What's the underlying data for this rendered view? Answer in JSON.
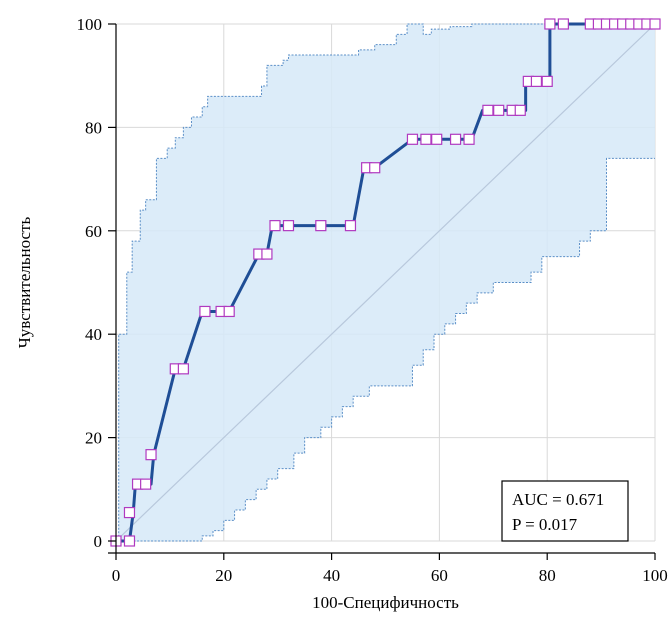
{
  "chart_data": {
    "type": "line",
    "title": "",
    "xlabel": "100-Специфичность",
    "ylabel": "Чувствительность",
    "xlim": [
      0,
      100
    ],
    "ylim": [
      0,
      100
    ],
    "x_ticks": [
      0,
      20,
      40,
      60,
      80,
      100
    ],
    "y_ticks": [
      0,
      20,
      40,
      60,
      80,
      100
    ],
    "grid": true,
    "colors": {
      "roc_line": "#1f4e96",
      "marker_stroke": "#b03ac0",
      "ci_fill": "#d6e9f8",
      "ci_border": "#5b8fc7",
      "diagonal": "#b8c8dc",
      "grid": "#d9d9d9"
    },
    "series": [
      {
        "type": "step-line",
        "x": [
          0,
          2.5,
          2.5,
          3.2,
          3.6,
          4.5,
          6.5,
          7,
          11,
          12.5,
          16,
          17,
          19.5,
          21,
          26.5,
          28,
          29,
          29.5,
          32,
          38,
          43,
          44,
          46,
          48,
          55,
          58,
          59,
          63,
          65,
          66,
          68,
          69,
          71,
          73,
          75,
          76,
          76,
          78,
          80,
          80.5,
          80.5,
          83,
          88,
          91,
          93,
          95,
          97,
          100
        ],
        "y": [
          0,
          0,
          0,
          5.5,
          11,
          11,
          11,
          16.7,
          33.3,
          33.3,
          44.4,
          44.4,
          44.4,
          44.4,
          55.5,
          55.5,
          61,
          61,
          61,
          61,
          61,
          61,
          72.2,
          72.2,
          77.7,
          77.7,
          77.7,
          77.7,
          77.7,
          77.7,
          83.3,
          83.3,
          83.3,
          83.3,
          83.3,
          83.3,
          88.9,
          88.9,
          88.9,
          88.9,
          100,
          100,
          100,
          100,
          100,
          100,
          100,
          100
        ]
      }
    ],
    "markers": {
      "x": [
        0,
        2.5,
        2.5,
        4,
        5.5,
        6.5,
        11,
        12.5,
        16.5,
        19.5,
        21,
        26.5,
        28,
        29.5,
        32,
        38,
        43.5,
        46.5,
        48,
        55,
        57.5,
        59.5,
        63,
        65.5,
        69,
        71,
        73.5,
        75,
        76.5,
        78,
        80,
        80.5,
        83,
        88,
        89.5,
        91,
        92.5,
        94,
        95.5,
        97,
        98.5,
        100
      ],
      "y": [
        0,
        0,
        5.5,
        11,
        11,
        16.7,
        33.3,
        33.3,
        44.4,
        44.4,
        44.4,
        55.5,
        55.5,
        61,
        61,
        61,
        61,
        72.2,
        72.2,
        77.7,
        77.7,
        77.7,
        77.7,
        77.7,
        83.3,
        83.3,
        83.3,
        83.3,
        88.9,
        88.9,
        88.9,
        100,
        100,
        100,
        100,
        100,
        100,
        100,
        100,
        100,
        100,
        100
      ]
    },
    "confidence_band": {
      "upper": {
        "x": [
          0,
          0.5,
          0.5,
          2,
          2,
          3,
          3,
          4.5,
          4.5,
          5.5,
          5.5,
          7.5,
          7.5,
          9.5,
          9.5,
          11,
          11,
          12.5,
          12.5,
          14,
          14,
          16,
          16,
          17,
          17,
          27,
          27,
          28,
          28,
          31,
          31,
          32,
          32,
          45,
          45,
          48,
          48,
          52,
          52,
          54,
          54,
          57,
          57,
          58.5,
          58.5,
          62,
          62,
          66,
          66,
          80,
          80,
          100
        ],
        "y": [
          0,
          0,
          40,
          40,
          52,
          52,
          58,
          58,
          64,
          64,
          66,
          66,
          74,
          74,
          76,
          76,
          78,
          78,
          80,
          80,
          82,
          82,
          84,
          84,
          86,
          86,
          88,
          88,
          92,
          92,
          93,
          93,
          94,
          94,
          95,
          95,
          96,
          96,
          98,
          98,
          100,
          100,
          98,
          98,
          99,
          99,
          99.5,
          99.5,
          100,
          100,
          100,
          100
        ]
      },
      "lower": {
        "x": [
          0,
          16,
          16,
          18,
          18,
          20,
          20,
          22,
          22,
          24,
          24,
          26,
          26,
          28,
          28,
          30,
          30,
          33,
          33,
          35,
          35,
          38,
          38,
          40,
          40,
          42,
          42,
          44,
          44,
          47,
          47,
          55,
          55,
          57,
          57,
          59,
          59,
          61,
          61,
          63,
          63,
          65,
          65,
          67,
          67,
          70,
          70,
          77,
          77,
          79,
          79,
          86,
          86,
          88,
          88,
          91,
          91,
          100
        ],
        "y": [
          0,
          0,
          1,
          1,
          2,
          2,
          4,
          4,
          6,
          6,
          8,
          8,
          10,
          10,
          12,
          12,
          14,
          14,
          17,
          17,
          20,
          20,
          22,
          22,
          24,
          24,
          26,
          26,
          28,
          28,
          30,
          30,
          34,
          34,
          37,
          37,
          40,
          40,
          42,
          42,
          44,
          44,
          46,
          46,
          48,
          48,
          50,
          50,
          52,
          52,
          55,
          55,
          58,
          58,
          60,
          60,
          74,
          74
        ]
      }
    },
    "diagonal": true,
    "annotation": {
      "lines": [
        "AUC = 0.671",
        "P = 0.017"
      ],
      "placement": "bottom-right"
    }
  }
}
